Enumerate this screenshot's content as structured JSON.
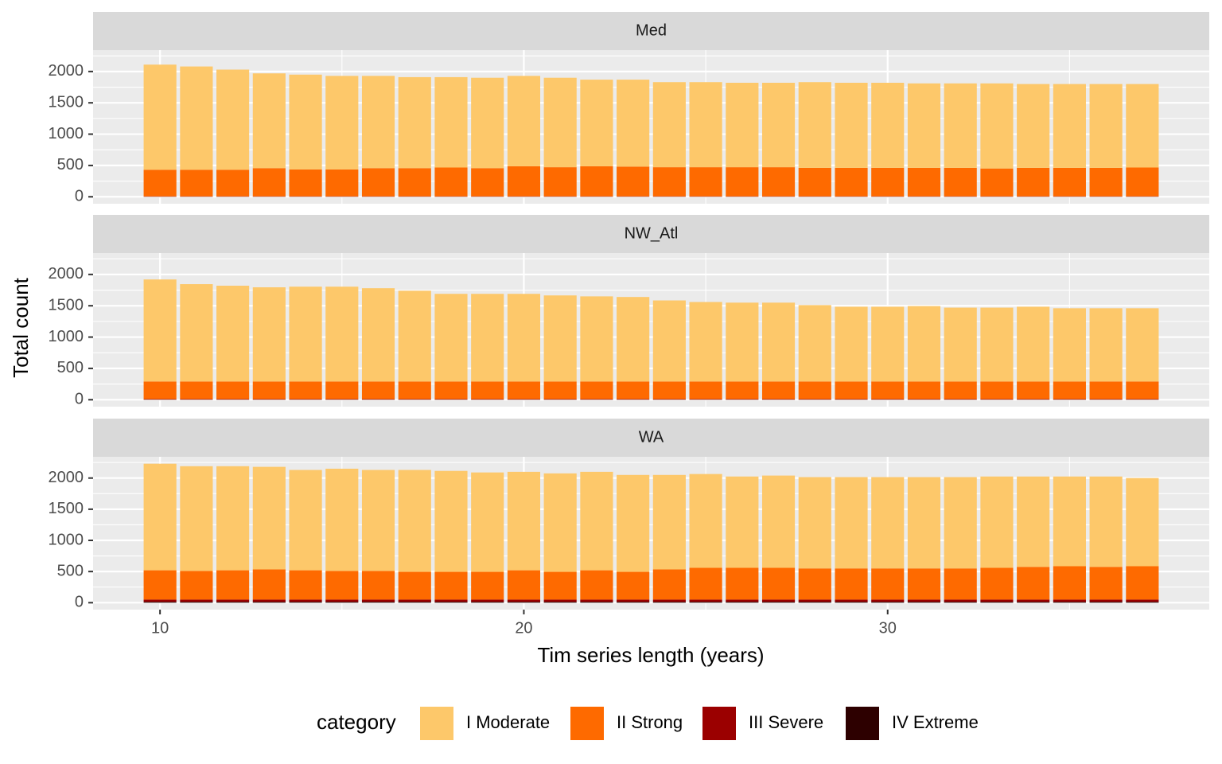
{
  "chart_data": [
    {
      "type": "bar",
      "stacked": true,
      "title": "Med",
      "x": [
        10,
        11,
        12,
        13,
        14,
        15,
        16,
        17,
        18,
        19,
        20,
        21,
        22,
        23,
        24,
        25,
        26,
        27,
        28,
        29,
        30,
        31,
        32,
        33,
        34,
        35,
        36,
        37
      ],
      "series": [
        {
          "name": "I Moderate",
          "color": "#fdc86a",
          "values": [
            1678,
            1648,
            1598,
            1513,
            1513,
            1493,
            1473,
            1453,
            1443,
            1443,
            1443,
            1428,
            1383,
            1388,
            1358,
            1358,
            1348,
            1348,
            1368,
            1358,
            1358,
            1348,
            1348,
            1358,
            1338,
            1338,
            1338,
            1333
          ]
        },
        {
          "name": "II Strong",
          "color": "#fe6a00",
          "values": [
            425,
            425,
            425,
            450,
            430,
            430,
            450,
            450,
            460,
            450,
            480,
            465,
            480,
            475,
            465,
            465,
            465,
            465,
            455,
            455,
            455,
            455,
            455,
            445,
            455,
            455,
            455,
            460
          ]
        },
        {
          "name": "III Severe",
          "color": "#9b0000",
          "values": [
            5,
            5,
            5,
            5,
            5,
            5,
            5,
            5,
            5,
            5,
            5,
            5,
            5,
            5,
            5,
            5,
            5,
            5,
            5,
            5,
            5,
            5,
            5,
            5,
            5,
            5,
            5,
            5
          ]
        },
        {
          "name": "IV Extreme",
          "color": "#2d0000",
          "values": [
            2,
            2,
            2,
            2,
            2,
            2,
            2,
            2,
            2,
            2,
            2,
            2,
            2,
            2,
            2,
            2,
            2,
            2,
            2,
            2,
            2,
            2,
            2,
            2,
            2,
            2,
            2,
            2
          ]
        }
      ],
      "xlim": [
        8.16,
        38.84
      ],
      "xticks": [
        10,
        20,
        30
      ],
      "x_minor_ticks": [
        15,
        25,
        35
      ],
      "ylim": [
        -111,
        2341
      ],
      "yticks": [
        0,
        500,
        1000,
        1500,
        2000
      ],
      "y_minor_ticks": [
        250,
        750,
        1250,
        1750,
        2250
      ],
      "grid": true
    },
    {
      "type": "bar",
      "stacked": true,
      "title": "NW_Atl",
      "ylabel": "Total count",
      "x": [
        10,
        11,
        12,
        13,
        14,
        15,
        16,
        17,
        18,
        19,
        20,
        21,
        22,
        23,
        24,
        25,
        26,
        27,
        28,
        29,
        30,
        31,
        32,
        33,
        34,
        35,
        36,
        37
      ],
      "series": [
        {
          "name": "I Moderate",
          "color": "#fdc86a",
          "values": [
            1629,
            1554,
            1529,
            1504,
            1514,
            1514,
            1489,
            1449,
            1399,
            1399,
            1399,
            1374,
            1359,
            1349,
            1294,
            1269,
            1259,
            1259,
            1219,
            1194,
            1194,
            1204,
            1179,
            1179,
            1194,
            1169,
            1169,
            1169
          ]
        },
        {
          "name": "II Strong",
          "color": "#fe6a00",
          "values": [
            280,
            280,
            280,
            280,
            280,
            280,
            280,
            280,
            280,
            280,
            280,
            280,
            280,
            280,
            280,
            280,
            280,
            280,
            280,
            280,
            280,
            280,
            280,
            280,
            280,
            280,
            280,
            280
          ]
        },
        {
          "name": "III Severe",
          "color": "#9b0000",
          "values": [
            8,
            8,
            8,
            8,
            8,
            8,
            8,
            8,
            8,
            8,
            8,
            8,
            8,
            8,
            8,
            8,
            8,
            8,
            8,
            8,
            8,
            8,
            8,
            8,
            8,
            8,
            8,
            8
          ]
        },
        {
          "name": "IV Extreme",
          "color": "#2d0000",
          "values": [
            3,
            3,
            3,
            3,
            3,
            3,
            3,
            3,
            3,
            3,
            3,
            3,
            3,
            3,
            3,
            3,
            3,
            3,
            3,
            3,
            3,
            3,
            3,
            3,
            3,
            3,
            3,
            3
          ]
        }
      ],
      "xlim": [
        8.16,
        38.84
      ],
      "xticks": [
        10,
        20,
        30
      ],
      "x_minor_ticks": [
        15,
        25,
        35
      ],
      "ylim": [
        -111,
        2341
      ],
      "yticks": [
        0,
        500,
        1000,
        1500,
        2000
      ],
      "y_minor_ticks": [
        250,
        750,
        1250,
        1750,
        2250
      ],
      "grid": true
    },
    {
      "type": "bar",
      "stacked": true,
      "title": "WA",
      "xlabel": "Tim series length (years)",
      "legend_title": "category",
      "x": [
        10,
        11,
        12,
        13,
        14,
        15,
        16,
        17,
        18,
        19,
        20,
        21,
        22,
        23,
        24,
        25,
        26,
        27,
        28,
        29,
        30,
        31,
        32,
        33,
        34,
        35,
        36,
        37
      ],
      "series": [
        {
          "name": "I Moderate",
          "color": "#fdc86a",
          "values": [
            1710,
            1680,
            1670,
            1645,
            1610,
            1640,
            1620,
            1635,
            1620,
            1595,
            1580,
            1580,
            1580,
            1555,
            1515,
            1505,
            1465,
            1480,
            1465,
            1465,
            1465,
            1465,
            1465,
            1465,
            1450,
            1440,
            1450,
            1415
          ]
        },
        {
          "name": "II Strong",
          "color": "#fe6a00",
          "values": [
            470,
            460,
            470,
            485,
            470,
            460,
            460,
            445,
            445,
            445,
            470,
            445,
            470,
            445,
            485,
            510,
            510,
            510,
            500,
            500,
            500,
            500,
            500,
            510,
            525,
            535,
            525,
            535
          ]
        },
        {
          "name": "III Severe",
          "color": "#9b0000",
          "values": [
            35,
            35,
            35,
            35,
            35,
            35,
            35,
            35,
            35,
            35,
            35,
            35,
            35,
            35,
            35,
            35,
            35,
            35,
            35,
            35,
            35,
            35,
            35,
            35,
            35,
            35,
            35,
            35
          ]
        },
        {
          "name": "IV Extreme",
          "color": "#2d0000",
          "values": [
            15,
            15,
            15,
            15,
            15,
            15,
            15,
            15,
            15,
            15,
            15,
            15,
            15,
            15,
            15,
            15,
            15,
            15,
            15,
            15,
            15,
            15,
            15,
            15,
            15,
            15,
            15,
            15
          ]
        }
      ],
      "xlim": [
        8.16,
        38.84
      ],
      "xticks": [
        10,
        20,
        30
      ],
      "x_minor_ticks": [
        15,
        25,
        35
      ],
      "ylim": [
        -111,
        2341
      ],
      "yticks": [
        0,
        500,
        1000,
        1500,
        2000
      ],
      "y_minor_ticks": [
        250,
        750,
        1250,
        1750,
        2250
      ],
      "grid": true,
      "legend": "bottom"
    }
  ]
}
